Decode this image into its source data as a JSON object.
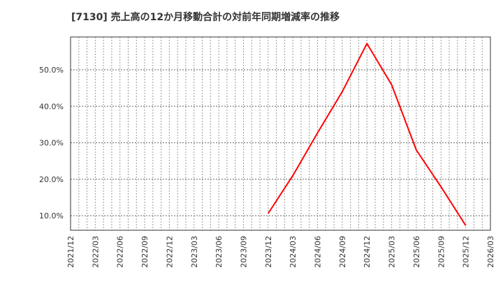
{
  "title": "[7130]  売上高の12か月移動合計の対前年同期増減率の推移",
  "colors": {
    "line": "#ff0000",
    "grid": "#999999",
    "frame": "#333333",
    "text": "#333333"
  },
  "chart_data": {
    "type": "line",
    "title": "[7130]  売上高の12か月移動合計の対前年同期増減率の推移",
    "xlabel": "",
    "ylabel": "",
    "x_tick_labels": [
      "2021/12",
      "2022/03",
      "2022/06",
      "2022/09",
      "2022/12",
      "2023/03",
      "2023/06",
      "2023/09",
      "2023/12",
      "2024/03",
      "2024/06",
      "2024/09",
      "2024/12",
      "2025/03",
      "2025/06",
      "2025/09",
      "2025/12",
      "2026/03"
    ],
    "y_tick_labels": [
      "10.0%",
      "20.0%",
      "30.0%",
      "40.0%",
      "50.0%"
    ],
    "y_ticks": [
      10,
      20,
      30,
      40,
      50
    ],
    "ylim": [
      6.0,
      59.0
    ],
    "grid": true,
    "legend": "none",
    "series": [
      {
        "name": "売上高の12か月移動合計の対前年同期増減率",
        "x": [
          "2023/12",
          "2024/03",
          "2024/06",
          "2024/09",
          "2024/12",
          "2025/03",
          "2025/06",
          "2025/09",
          "2025/12"
        ],
        "values": [
          10.6,
          21.0,
          32.7,
          44.0,
          57.2,
          45.9,
          28.0,
          17.9,
          7.3
        ]
      }
    ]
  }
}
